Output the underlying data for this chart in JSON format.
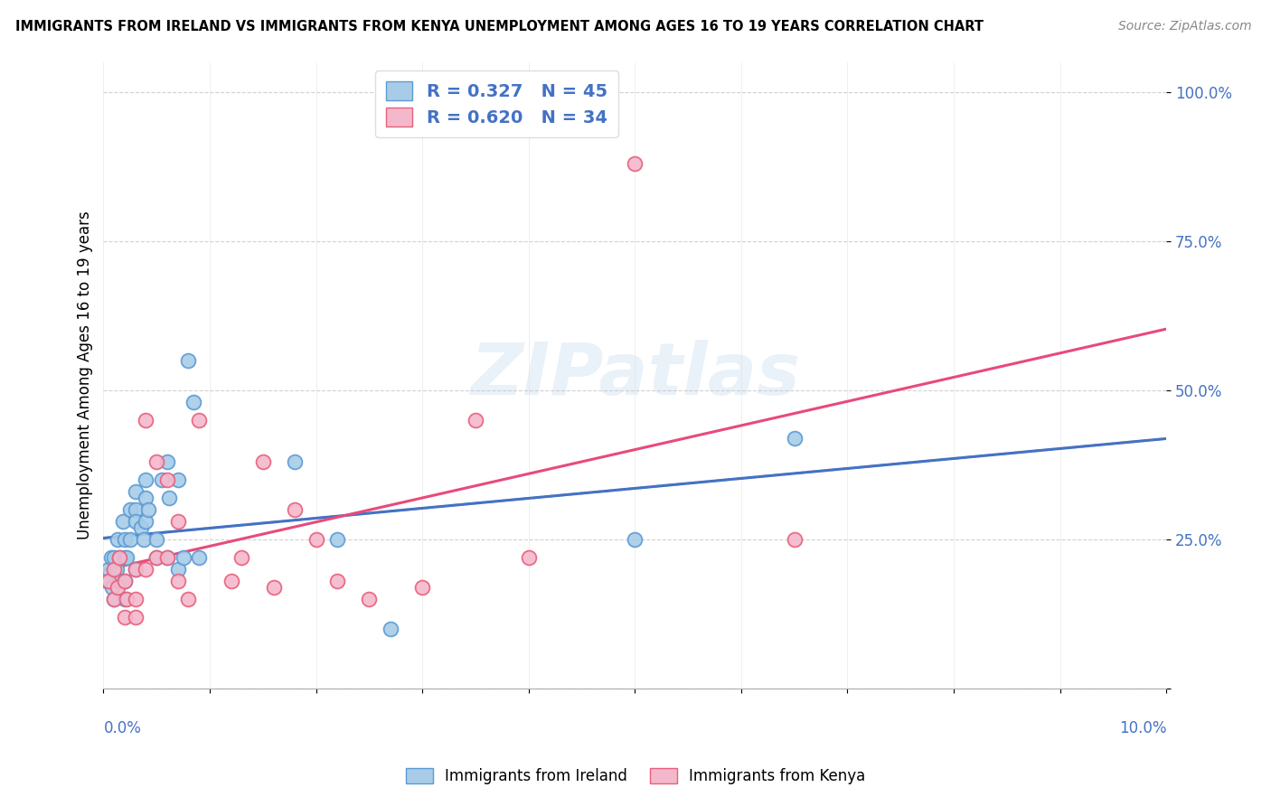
{
  "title": "IMMIGRANTS FROM IRELAND VS IMMIGRANTS FROM KENYA UNEMPLOYMENT AMONG AGES 16 TO 19 YEARS CORRELATION CHART",
  "source": "Source: ZipAtlas.com",
  "ylabel": "Unemployment Among Ages 16 to 19 years",
  "watermark": "ZIPatlas",
  "ireland_R": 0.327,
  "ireland_N": 45,
  "kenya_R": 0.62,
  "kenya_N": 34,
  "ireland_color": "#a8cce8",
  "ireland_edge_color": "#5b9bd5",
  "kenya_color": "#f4b8cc",
  "kenya_edge_color": "#e8607a",
  "ireland_line_color": "#4472c4",
  "kenya_line_color": "#e84a7a",
  "xlim": [
    0.0,
    0.1
  ],
  "ylim": [
    0.0,
    1.05
  ],
  "ireland_x": [
    0.0003,
    0.0005,
    0.0007,
    0.0008,
    0.001,
    0.001,
    0.0012,
    0.0013,
    0.0015,
    0.0015,
    0.0018,
    0.002,
    0.002,
    0.002,
    0.002,
    0.0022,
    0.0025,
    0.0025,
    0.003,
    0.003,
    0.003,
    0.003,
    0.0035,
    0.0038,
    0.004,
    0.004,
    0.004,
    0.0042,
    0.005,
    0.005,
    0.0055,
    0.006,
    0.006,
    0.0062,
    0.007,
    0.007,
    0.0075,
    0.008,
    0.0085,
    0.009,
    0.018,
    0.022,
    0.027,
    0.05,
    0.065
  ],
  "ireland_y": [
    0.18,
    0.2,
    0.22,
    0.17,
    0.22,
    0.15,
    0.2,
    0.25,
    0.22,
    0.18,
    0.28,
    0.22,
    0.18,
    0.15,
    0.25,
    0.22,
    0.3,
    0.25,
    0.33,
    0.3,
    0.28,
    0.2,
    0.27,
    0.25,
    0.35,
    0.32,
    0.28,
    0.3,
    0.25,
    0.22,
    0.35,
    0.38,
    0.22,
    0.32,
    0.35,
    0.2,
    0.22,
    0.55,
    0.48,
    0.22,
    0.38,
    0.25,
    0.1,
    0.25,
    0.42
  ],
  "kenya_x": [
    0.0005,
    0.001,
    0.001,
    0.0013,
    0.0015,
    0.002,
    0.002,
    0.0022,
    0.003,
    0.003,
    0.003,
    0.004,
    0.004,
    0.005,
    0.005,
    0.006,
    0.006,
    0.007,
    0.007,
    0.008,
    0.009,
    0.012,
    0.013,
    0.015,
    0.016,
    0.018,
    0.02,
    0.022,
    0.025,
    0.03,
    0.035,
    0.04,
    0.05,
    0.065
  ],
  "kenya_y": [
    0.18,
    0.2,
    0.15,
    0.17,
    0.22,
    0.18,
    0.12,
    0.15,
    0.2,
    0.15,
    0.12,
    0.45,
    0.2,
    0.38,
    0.22,
    0.35,
    0.22,
    0.28,
    0.18,
    0.15,
    0.45,
    0.18,
    0.22,
    0.38,
    0.17,
    0.3,
    0.25,
    0.18,
    0.15,
    0.17,
    0.45,
    0.22,
    0.88,
    0.25
  ]
}
